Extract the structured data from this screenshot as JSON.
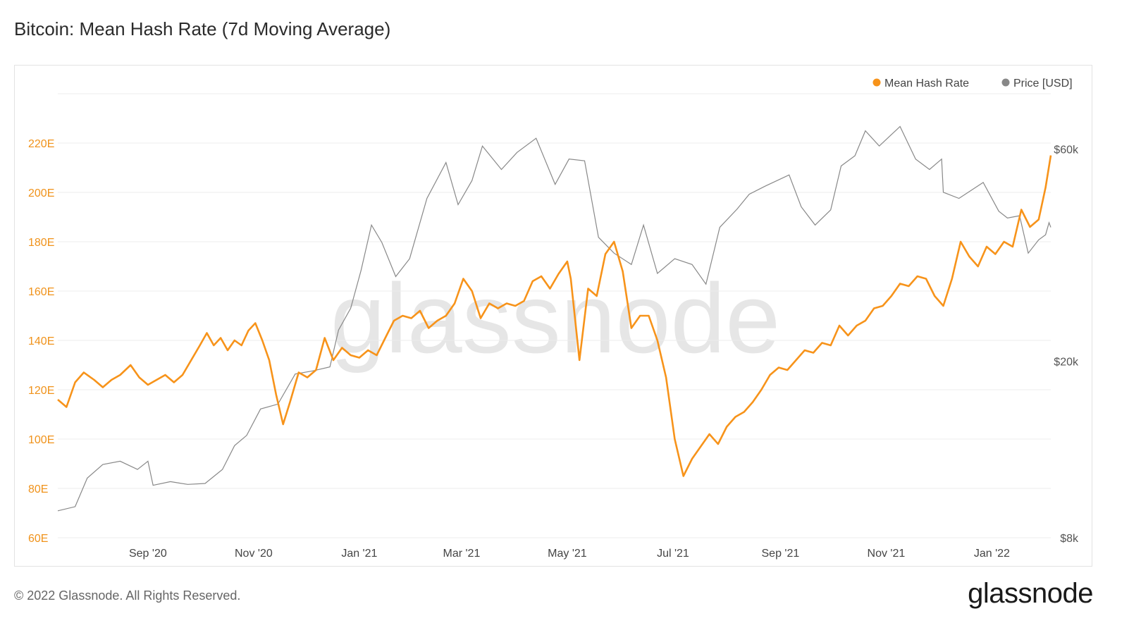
{
  "title": "Bitcoin: Mean Hash Rate (7d Moving Average)",
  "footer": "© 2022 Glassnode. All Rights Reserved.",
  "brand": "glassnode",
  "watermark": "glassnode",
  "colors": {
    "hash": "#f7931a",
    "price": "#888888",
    "grid": "#ececec"
  },
  "chart_data": {
    "type": "line",
    "title": "Bitcoin: Mean Hash Rate (7d Moving Average)",
    "x_ticks": [
      "Sep '20",
      "Nov '20",
      "Jan '21",
      "Mar '21",
      "May '21",
      "Jul '21",
      "Sep '21",
      "Nov '21",
      "Jan '22"
    ],
    "x_range": [
      "2020-07-11",
      "2022-02-04"
    ],
    "left_axis": {
      "ticks": [
        "60E",
        "80E",
        "100E",
        "120E",
        "140E",
        "160E",
        "180E",
        "200E",
        "220E"
      ],
      "ylim": [
        60,
        240
      ],
      "unit": "EH/s"
    },
    "right_axis": {
      "ticks": [
        "$8k",
        "$20k",
        "$60k"
      ],
      "scale": "log",
      "ylim": [
        8000,
        80000
      ]
    },
    "legend": {
      "position": "top-right",
      "items": [
        "Mean Hash Rate",
        "Price [USD]"
      ]
    },
    "grid": true,
    "series": [
      {
        "name": "Mean Hash Rate",
        "axis": "left",
        "color": "#f7931a",
        "points": [
          [
            "2020-07-11",
            116
          ],
          [
            "2020-07-16",
            113
          ],
          [
            "2020-07-21",
            123
          ],
          [
            "2020-07-26",
            127
          ],
          [
            "2020-08-01",
            124
          ],
          [
            "2020-08-06",
            121
          ],
          [
            "2020-08-11",
            124
          ],
          [
            "2020-08-16",
            126
          ],
          [
            "2020-08-22",
            130
          ],
          [
            "2020-08-27",
            125
          ],
          [
            "2020-09-01",
            122
          ],
          [
            "2020-09-06",
            124
          ],
          [
            "2020-09-11",
            126
          ],
          [
            "2020-09-16",
            123
          ],
          [
            "2020-09-21",
            126
          ],
          [
            "2020-09-26",
            132
          ],
          [
            "2020-10-01",
            138
          ],
          [
            "2020-10-05",
            143
          ],
          [
            "2020-10-09",
            138
          ],
          [
            "2020-10-13",
            141
          ],
          [
            "2020-10-17",
            136
          ],
          [
            "2020-10-21",
            140
          ],
          [
            "2020-10-25",
            138
          ],
          [
            "2020-10-29",
            144
          ],
          [
            "2020-11-02",
            147
          ],
          [
            "2020-11-06",
            140
          ],
          [
            "2020-11-10",
            132
          ],
          [
            "2020-11-14",
            118
          ],
          [
            "2020-11-18",
            106
          ],
          [
            "2020-11-22",
            115
          ],
          [
            "2020-11-27",
            127
          ],
          [
            "2020-12-02",
            125
          ],
          [
            "2020-12-07",
            128
          ],
          [
            "2020-12-12",
            141
          ],
          [
            "2020-12-17",
            132
          ],
          [
            "2020-12-22",
            137
          ],
          [
            "2020-12-27",
            134
          ],
          [
            "2021-01-01",
            133
          ],
          [
            "2021-01-06",
            136
          ],
          [
            "2021-01-11",
            134
          ],
          [
            "2021-01-16",
            141
          ],
          [
            "2021-01-21",
            148
          ],
          [
            "2021-01-26",
            150
          ],
          [
            "2021-01-31",
            149
          ],
          [
            "2021-02-05",
            152
          ],
          [
            "2021-02-10",
            145
          ],
          [
            "2021-02-15",
            148
          ],
          [
            "2021-02-20",
            150
          ],
          [
            "2021-02-25",
            155
          ],
          [
            "2021-03-02",
            165
          ],
          [
            "2021-03-07",
            160
          ],
          [
            "2021-03-12",
            149
          ],
          [
            "2021-03-17",
            155
          ],
          [
            "2021-03-22",
            153
          ],
          [
            "2021-03-27",
            155
          ],
          [
            "2021-04-01",
            154
          ],
          [
            "2021-04-06",
            156
          ],
          [
            "2021-04-11",
            164
          ],
          [
            "2021-04-16",
            166
          ],
          [
            "2021-04-21",
            161
          ],
          [
            "2021-04-26",
            167
          ],
          [
            "2021-05-01",
            172
          ],
          [
            "2021-05-03",
            165
          ],
          [
            "2021-05-08",
            132
          ],
          [
            "2021-05-13",
            161
          ],
          [
            "2021-05-18",
            158
          ],
          [
            "2021-05-23",
            175
          ],
          [
            "2021-05-28",
            180
          ],
          [
            "2021-06-02",
            168
          ],
          [
            "2021-06-07",
            145
          ],
          [
            "2021-06-12",
            150
          ],
          [
            "2021-06-17",
            150
          ],
          [
            "2021-06-22",
            140
          ],
          [
            "2021-06-27",
            125
          ],
          [
            "2021-07-02",
            100
          ],
          [
            "2021-07-07",
            85
          ],
          [
            "2021-07-12",
            92
          ],
          [
            "2021-07-17",
            97
          ],
          [
            "2021-07-22",
            102
          ],
          [
            "2021-07-27",
            98
          ],
          [
            "2021-08-01",
            105
          ],
          [
            "2021-08-06",
            109
          ],
          [
            "2021-08-11",
            111
          ],
          [
            "2021-08-16",
            115
          ],
          [
            "2021-08-21",
            120
          ],
          [
            "2021-08-26",
            126
          ],
          [
            "2021-08-31",
            129
          ],
          [
            "2021-09-05",
            128
          ],
          [
            "2021-09-10",
            132
          ],
          [
            "2021-09-15",
            136
          ],
          [
            "2021-09-20",
            135
          ],
          [
            "2021-09-25",
            139
          ],
          [
            "2021-09-30",
            138
          ],
          [
            "2021-10-05",
            146
          ],
          [
            "2021-10-10",
            142
          ],
          [
            "2021-10-15",
            146
          ],
          [
            "2021-10-20",
            148
          ],
          [
            "2021-10-25",
            153
          ],
          [
            "2021-10-30",
            154
          ],
          [
            "2021-11-04",
            158
          ],
          [
            "2021-11-09",
            163
          ],
          [
            "2021-11-14",
            162
          ],
          [
            "2021-11-19",
            166
          ],
          [
            "2021-11-24",
            165
          ],
          [
            "2021-11-29",
            158
          ],
          [
            "2021-12-04",
            154
          ],
          [
            "2021-12-09",
            165
          ],
          [
            "2021-12-14",
            180
          ],
          [
            "2021-12-19",
            174
          ],
          [
            "2021-12-24",
            170
          ],
          [
            "2021-12-29",
            178
          ],
          [
            "2022-01-03",
            175
          ],
          [
            "2022-01-08",
            180
          ],
          [
            "2022-01-13",
            178
          ],
          [
            "2022-01-18",
            193
          ],
          [
            "2022-01-23",
            186
          ],
          [
            "2022-01-28",
            189
          ],
          [
            "2022-02-01",
            202
          ],
          [
            "2022-02-04",
            215
          ]
        ]
      },
      {
        "name": "Price [USD]",
        "axis": "right",
        "color": "#888888",
        "points": [
          [
            "2020-07-11",
            9200
          ],
          [
            "2020-07-21",
            9400
          ],
          [
            "2020-07-28",
            10900
          ],
          [
            "2020-08-06",
            11700
          ],
          [
            "2020-08-16",
            11900
          ],
          [
            "2020-08-26",
            11400
          ],
          [
            "2020-09-01",
            11900
          ],
          [
            "2020-09-04",
            10500
          ],
          [
            "2020-09-14",
            10700
          ],
          [
            "2020-09-24",
            10550
          ],
          [
            "2020-10-04",
            10600
          ],
          [
            "2020-10-14",
            11400
          ],
          [
            "2020-10-21",
            12900
          ],
          [
            "2020-10-28",
            13600
          ],
          [
            "2020-11-05",
            15600
          ],
          [
            "2020-11-15",
            16000
          ],
          [
            "2020-11-25",
            18700
          ],
          [
            "2020-12-05",
            19000
          ],
          [
            "2020-12-15",
            19400
          ],
          [
            "2020-12-20",
            23500
          ],
          [
            "2020-12-27",
            26300
          ],
          [
            "2021-01-02",
            32000
          ],
          [
            "2021-01-08",
            40500
          ],
          [
            "2021-01-14",
            37000
          ],
          [
            "2021-01-22",
            31000
          ],
          [
            "2021-01-30",
            34000
          ],
          [
            "2021-02-09",
            46500
          ],
          [
            "2021-02-20",
            56000
          ],
          [
            "2021-02-27",
            45000
          ],
          [
            "2021-03-07",
            51000
          ],
          [
            "2021-03-13",
            61000
          ],
          [
            "2021-03-24",
            54000
          ],
          [
            "2021-04-02",
            59000
          ],
          [
            "2021-04-13",
            63500
          ],
          [
            "2021-04-24",
            50000
          ],
          [
            "2021-05-02",
            57000
          ],
          [
            "2021-05-11",
            56500
          ],
          [
            "2021-05-19",
            38000
          ],
          [
            "2021-05-28",
            35000
          ],
          [
            "2021-06-07",
            33000
          ],
          [
            "2021-06-14",
            40500
          ],
          [
            "2021-06-22",
            31500
          ],
          [
            "2021-07-02",
            34000
          ],
          [
            "2021-07-12",
            33000
          ],
          [
            "2021-07-20",
            29800
          ],
          [
            "2021-07-28",
            40000
          ],
          [
            "2021-08-07",
            44000
          ],
          [
            "2021-08-14",
            47500
          ],
          [
            "2021-08-23",
            49500
          ],
          [
            "2021-09-06",
            52500
          ],
          [
            "2021-09-13",
            44500
          ],
          [
            "2021-09-21",
            40500
          ],
          [
            "2021-09-30",
            43800
          ],
          [
            "2021-10-06",
            55000
          ],
          [
            "2021-10-14",
            58000
          ],
          [
            "2021-10-20",
            66000
          ],
          [
            "2021-10-28",
            61000
          ],
          [
            "2021-11-09",
            67500
          ],
          [
            "2021-11-18",
            57000
          ],
          [
            "2021-11-26",
            54000
          ],
          [
            "2021-12-03",
            57000
          ],
          [
            "2021-12-04",
            48000
          ],
          [
            "2021-12-13",
            46500
          ],
          [
            "2021-12-27",
            50500
          ],
          [
            "2022-01-05",
            43500
          ],
          [
            "2022-01-10",
            42000
          ],
          [
            "2022-01-17",
            42500
          ],
          [
            "2022-01-22",
            35000
          ],
          [
            "2022-01-28",
            37500
          ],
          [
            "2022-02-01",
            38500
          ],
          [
            "2022-02-03",
            41000
          ],
          [
            "2022-02-04",
            40000
          ]
        ]
      }
    ]
  }
}
